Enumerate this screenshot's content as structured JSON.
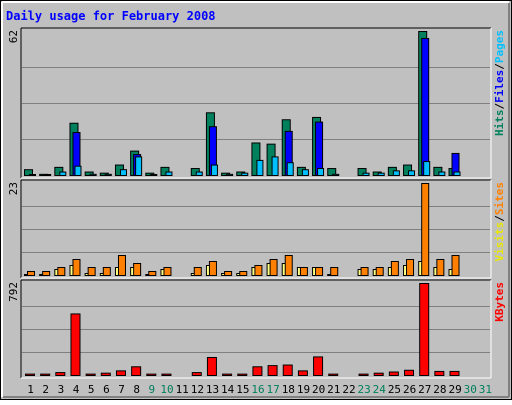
{
  "chart_data": {
    "type": "bar",
    "title": "Daily usage for February 2008",
    "days": [
      "1",
      "2",
      "3",
      "4",
      "5",
      "6",
      "7",
      "8",
      "9",
      "10",
      "11",
      "12",
      "13",
      "14",
      "15",
      "16",
      "17",
      "18",
      "19",
      "20",
      "21",
      "22",
      "23",
      "24",
      "25",
      "26",
      "27",
      "28",
      "29",
      "30",
      "31"
    ],
    "weekend_days": [
      "9",
      "10",
      "16",
      "17",
      "23",
      "24",
      "30",
      "31"
    ],
    "panels": [
      {
        "id": "top",
        "max_label": "62",
        "ymax": 62,
        "side_labels": [
          {
            "text": "Hits",
            "color": "#00805c"
          },
          {
            "text": "/",
            "color": "#000000"
          },
          {
            "text": "Files",
            "color": "#0000ff"
          },
          {
            "text": "/",
            "color": "#000000"
          },
          {
            "text": "Pages",
            "color": "#00c0ff"
          }
        ],
        "series": [
          {
            "name": "Hits",
            "color": "#00805c",
            "values": [
              2.5,
              0.5,
              3.5,
              22.5,
              1.5,
              1.0,
              4.5,
              10.5,
              1.0,
              3.5,
              null,
              3.0,
              27.0,
              1.0,
              1.5,
              14.0,
              13.5,
              24.0,
              3.5,
              25.0,
              3.0,
              null,
              3.0,
              1.5,
              3.5,
              4.5,
              62.0,
              3.5,
              3.0,
              null,
              null
            ]
          },
          {
            "name": "Files",
            "color": "#0000ff",
            "values": [
              null,
              null,
              null,
              18.5,
              null,
              null,
              null,
              9.0,
              null,
              null,
              null,
              null,
              21.0,
              null,
              null,
              null,
              null,
              19.0,
              null,
              23.0,
              null,
              null,
              null,
              null,
              null,
              null,
              59.0,
              null,
              9.5,
              null,
              null
            ]
          },
          {
            "name": "Pages",
            "color": "#00c0ff",
            "values": [
              0,
              0,
              1.5,
              4.0,
              0.5,
              0.5,
              2.5,
              8.0,
              0,
              1.5,
              null,
              1.5,
              4.5,
              0.5,
              1.0,
              6.5,
              8.0,
              5.5,
              2.5,
              3.0,
              0.5,
              null,
              1.0,
              1.0,
              2.0,
              2.0,
              6.0,
              1.5,
              1.5,
              null,
              null
            ]
          }
        ]
      },
      {
        "id": "middle",
        "max_label": "23",
        "ymax": 23,
        "side_labels": [
          {
            "text": "Visits",
            "color": "#e8e800"
          },
          {
            "text": "/",
            "color": "#000000"
          },
          {
            "text": "Sites",
            "color": "#ff8000"
          }
        ],
        "series": [
          {
            "name": "Visits",
            "color": "#ffff80",
            "values": [
              0,
              0,
              1.5,
              2.5,
              0.5,
              0.5,
              2.0,
              2.0,
              0,
              1.5,
              null,
              0.5,
              2.5,
              0.5,
              0.5,
              2.0,
              3.0,
              3.0,
              2.0,
              2.0,
              0,
              null,
              1.5,
              1.5,
              2.0,
              2.5,
              3.5,
              2.0,
              1.5,
              null,
              null
            ]
          },
          {
            "name": "Sites",
            "color": "#ff8000",
            "values": [
              1.0,
              1.0,
              2.0,
              4.0,
              2.0,
              2.0,
              5.0,
              3.0,
              1.0,
              2.0,
              null,
              2.0,
              3.5,
              1.0,
              1.0,
              2.5,
              4.0,
              5.0,
              2.0,
              2.0,
              2.0,
              null,
              2.0,
              2.0,
              3.5,
              4.0,
              23.0,
              4.0,
              5.0,
              null,
              null
            ]
          }
        ]
      },
      {
        "id": "bottom",
        "max_label": "792",
        "ymax": 792,
        "side_labels": [
          {
            "text": "KBytes",
            "color": "#ff0000"
          }
        ],
        "series": [
          {
            "name": "KBytes",
            "color": "#ff0000",
            "values": [
              12,
              12,
              25,
              530,
              12,
              20,
              40,
              75,
              12,
              12,
              null,
              25,
              155,
              12,
              12,
              75,
              85,
              90,
              40,
              160,
              12,
              null,
              12,
              20,
              30,
              45,
              792,
              35,
              35,
              null,
              null
            ]
          }
        ]
      }
    ]
  },
  "colors": {
    "frame_outer": "#ffffff",
    "background": "#c0c0c0",
    "panel_bg": "#c0c0c0",
    "gridline": "#808080",
    "title": "#0000ff",
    "weekday_label": "#000000",
    "weekend_label": "#00805c"
  }
}
